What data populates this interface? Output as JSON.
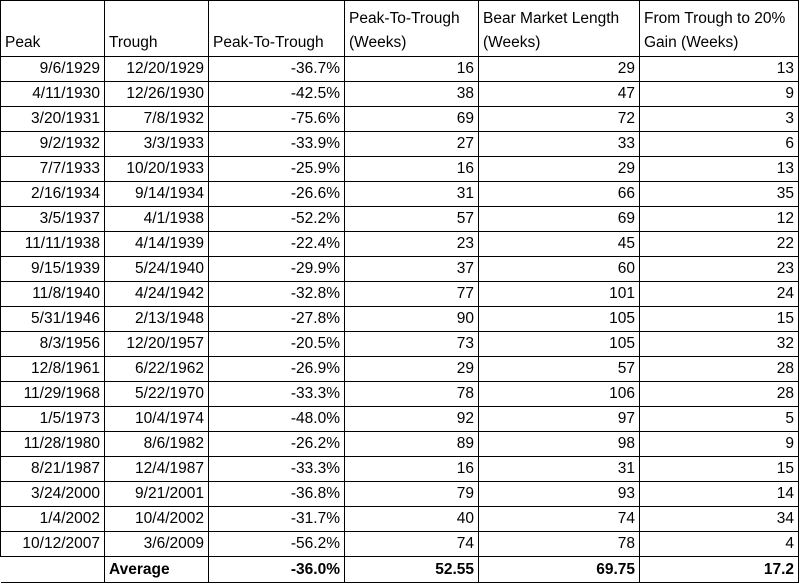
{
  "headers": {
    "peak": "Peak",
    "trough": "Trough",
    "peak_to_trough": "Peak-To-Trough",
    "peak_to_trough_weeks": "Peak-To-Trough (Weeks)",
    "bear_market_length": "Bear Market Length (Weeks)",
    "trough_to_gain": "From Trough to 20% Gain (Weeks)"
  },
  "rows": [
    {
      "peak": "9/6/1929",
      "trough": "12/20/1929",
      "pct": "-36.7%",
      "weeks": "16",
      "length": "29",
      "gain": "13"
    },
    {
      "peak": "4/11/1930",
      "trough": "12/26/1930",
      "pct": "-42.5%",
      "weeks": "38",
      "length": "47",
      "gain": "9"
    },
    {
      "peak": "3/20/1931",
      "trough": "7/8/1932",
      "pct": "-75.6%",
      "weeks": "69",
      "length": "72",
      "gain": "3"
    },
    {
      "peak": "9/2/1932",
      "trough": "3/3/1933",
      "pct": "-33.9%",
      "weeks": "27",
      "length": "33",
      "gain": "6"
    },
    {
      "peak": "7/7/1933",
      "trough": "10/20/1933",
      "pct": "-25.9%",
      "weeks": "16",
      "length": "29",
      "gain": "13"
    },
    {
      "peak": "2/16/1934",
      "trough": "9/14/1934",
      "pct": "-26.6%",
      "weeks": "31",
      "length": "66",
      "gain": "35"
    },
    {
      "peak": "3/5/1937",
      "trough": "4/1/1938",
      "pct": "-52.2%",
      "weeks": "57",
      "length": "69",
      "gain": "12"
    },
    {
      "peak": "11/11/1938",
      "trough": "4/14/1939",
      "pct": "-22.4%",
      "weeks": "23",
      "length": "45",
      "gain": "22"
    },
    {
      "peak": "9/15/1939",
      "trough": "5/24/1940",
      "pct": "-29.9%",
      "weeks": "37",
      "length": "60",
      "gain": "23"
    },
    {
      "peak": "11/8/1940",
      "trough": "4/24/1942",
      "pct": "-32.8%",
      "weeks": "77",
      "length": "101",
      "gain": "24"
    },
    {
      "peak": "5/31/1946",
      "trough": "2/13/1948",
      "pct": "-27.8%",
      "weeks": "90",
      "length": "105",
      "gain": "15"
    },
    {
      "peak": "8/3/1956",
      "trough": "12/20/1957",
      "pct": "-20.5%",
      "weeks": "73",
      "length": "105",
      "gain": "32"
    },
    {
      "peak": "12/8/1961",
      "trough": "6/22/1962",
      "pct": "-26.9%",
      "weeks": "29",
      "length": "57",
      "gain": "28"
    },
    {
      "peak": "11/29/1968",
      "trough": "5/22/1970",
      "pct": "-33.3%",
      "weeks": "78",
      "length": "106",
      "gain": "28"
    },
    {
      "peak": "1/5/1973",
      "trough": "10/4/1974",
      "pct": "-48.0%",
      "weeks": "92",
      "length": "97",
      "gain": "5"
    },
    {
      "peak": "11/28/1980",
      "trough": "8/6/1982",
      "pct": "-26.2%",
      "weeks": "89",
      "length": "98",
      "gain": "9"
    },
    {
      "peak": "8/21/1987",
      "trough": "12/4/1987",
      "pct": "-33.3%",
      "weeks": "16",
      "length": "31",
      "gain": "15"
    },
    {
      "peak": "3/24/2000",
      "trough": "9/21/2001",
      "pct": "-36.8%",
      "weeks": "79",
      "length": "93",
      "gain": "14"
    },
    {
      "peak": "1/4/2002",
      "trough": "10/4/2002",
      "pct": "-31.7%",
      "weeks": "40",
      "length": "74",
      "gain": "34"
    },
    {
      "peak": "10/12/2007",
      "trough": "3/6/2009",
      "pct": "-56.2%",
      "weeks": "74",
      "length": "78",
      "gain": "4"
    }
  ],
  "average": {
    "label": "Average",
    "pct": "-36.0%",
    "weeks": "52.55",
    "length": "69.75",
    "gain": "17.2"
  }
}
